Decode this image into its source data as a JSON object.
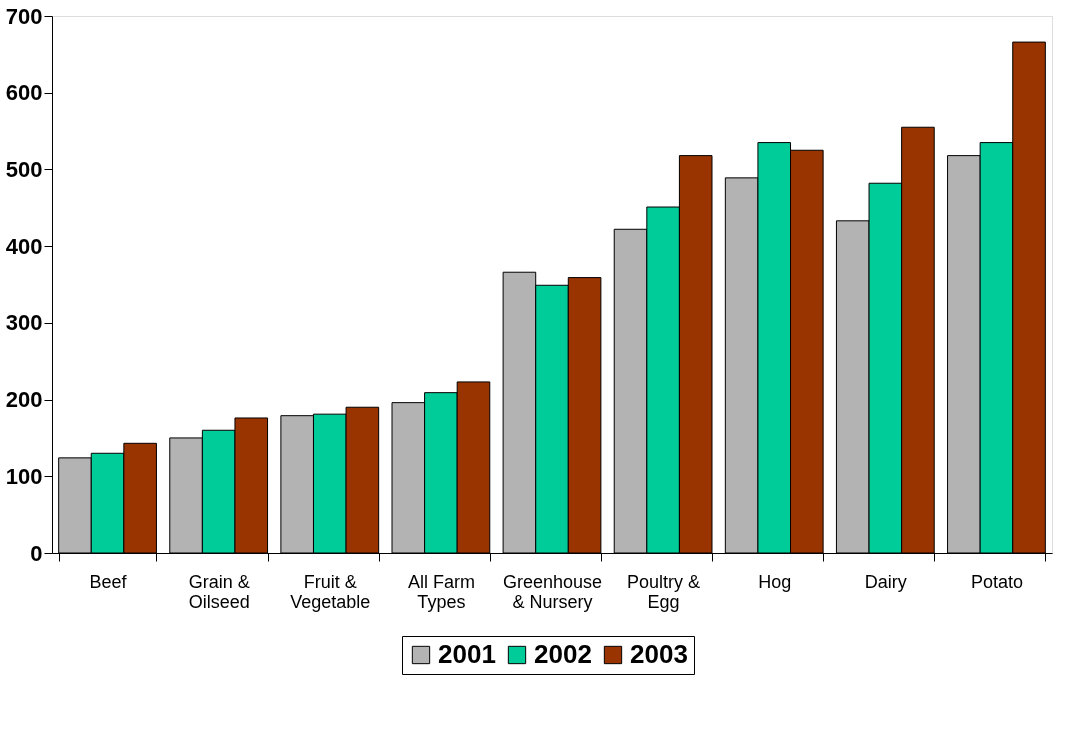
{
  "chart_data": {
    "type": "bar",
    "categories": [
      "Beef",
      "Grain &\nOilseed",
      "Fruit &\nVegetable",
      "All Farm\nTypes",
      "Greenhouse\n& Nursery",
      "Poultry &\nEgg",
      "Hog",
      "Dairy",
      "Potato"
    ],
    "series": [
      {
        "name": "2001",
        "color": "#b3b3b3",
        "values": [
          124,
          150,
          179,
          196,
          366,
          422,
          489,
          433,
          518
        ]
      },
      {
        "name": "2002",
        "color": "#00cc99",
        "values": [
          130,
          160,
          181,
          209,
          349,
          451,
          535,
          482,
          535
        ]
      },
      {
        "name": "2003",
        "color": "#993300",
        "values": [
          143,
          176,
          190,
          223,
          359,
          518,
          525,
          555,
          666
        ]
      }
    ],
    "ylim": [
      0,
      700
    ],
    "yticks": [
      0,
      100,
      200,
      300,
      400,
      500,
      600,
      700
    ],
    "grid": false,
    "legend": "bottom"
  }
}
